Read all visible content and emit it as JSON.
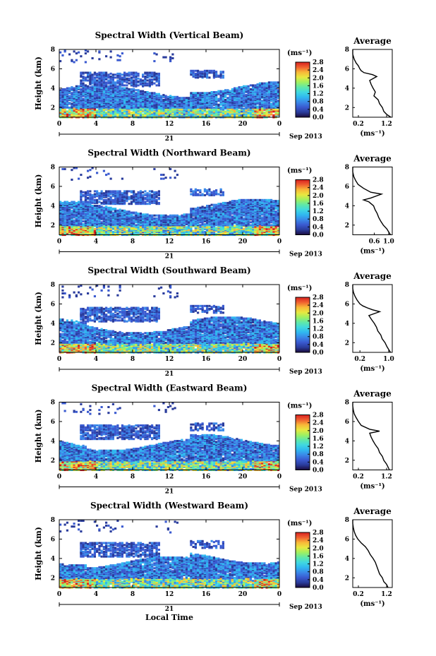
{
  "figure": {
    "xlabel": "Local Time",
    "date_label": "Sep 2013",
    "day_label": "21",
    "units_label": "(ms⁻¹)",
    "avg_title": "Average"
  },
  "colormap": [
    "#1a0a3c",
    "#2a3c9c",
    "#3a5ad0",
    "#3a88e8",
    "#30b8f0",
    "#40d8e0",
    "#60e8a8",
    "#a0f060",
    "#e8e840",
    "#f8b838",
    "#f06030",
    "#d82020"
  ],
  "chart_data": [
    {
      "type": "heatmap",
      "title": "Spectral Width (Vertical Beam)",
      "xlabel": "",
      "ylabel": "Height (km)",
      "x_ticks": [
        "0",
        "4",
        "8",
        "12",
        "16",
        "20",
        "0"
      ],
      "y_ticks": [
        "2",
        "4",
        "6",
        "8"
      ],
      "xlim": [
        0,
        24
      ],
      "ylim": [
        1,
        8
      ],
      "colorbar": {
        "ticks": [
          "0.0",
          "0.4",
          "0.8",
          "1.2",
          "1.6",
          "2.0",
          "2.4",
          "2.8"
        ],
        "range": [
          0.0,
          2.8
        ]
      },
      "top_layer_km": 5.6,
      "average": {
        "title": "Average",
        "xlabel": "(ms⁻¹)",
        "x_ticks": [
          "0.2",
          "1.2"
        ],
        "xlim": [
          0.0,
          1.4
        ],
        "y_ticks": [
          "2",
          "4",
          "6",
          "8"
        ],
        "ylim": [
          1,
          8
        ],
        "height_km": [
          1.0,
          1.3,
          1.6,
          2.0,
          2.4,
          2.8,
          3.2,
          3.6,
          4.0,
          4.4,
          4.8,
          5.2,
          5.4,
          5.6,
          5.8,
          6.0,
          6.3,
          6.6,
          7.0,
          7.5,
          8.0
        ],
        "width": [
          1.35,
          1.2,
          1.1,
          1.05,
          0.95,
          0.9,
          0.75,
          0.8,
          0.72,
          0.65,
          0.6,
          0.85,
          0.7,
          0.4,
          0.3,
          0.25,
          0.2,
          0.12,
          0.05,
          0.0,
          0.0
        ]
      }
    },
    {
      "type": "heatmap",
      "title": "Spectral Width (Northward Beam)",
      "xlabel": "",
      "ylabel": "Height (km)",
      "x_ticks": [
        "0",
        "4",
        "8",
        "12",
        "16",
        "20",
        "0"
      ],
      "y_ticks": [
        "2",
        "4",
        "6",
        "8"
      ],
      "xlim": [
        0,
        24
      ],
      "ylim": [
        1,
        8
      ],
      "colorbar": {
        "ticks": [
          "0.0",
          "0.4",
          "0.8",
          "1.2",
          "1.6",
          "2.0",
          "2.4",
          "2.8"
        ],
        "range": [
          0.0,
          2.8
        ]
      },
      "top_layer_km": 5.5,
      "average": {
        "title": "Average",
        "xlabel": "(ms⁻¹)",
        "x_ticks": [
          "0.6",
          "1.0"
        ],
        "xlim": [
          0.0,
          1.1
        ],
        "y_ticks": [
          "2",
          "4",
          "6",
          "8"
        ],
        "ylim": [
          1,
          8
        ],
        "height_km": [
          1.0,
          1.3,
          1.6,
          2.0,
          2.4,
          2.8,
          3.2,
          3.6,
          4.0,
          4.4,
          4.6,
          4.8,
          5.2,
          5.4,
          5.8,
          6.2,
          6.6,
          7.0,
          7.5,
          8.0
        ],
        "width": [
          1.05,
          1.0,
          0.95,
          0.85,
          0.78,
          0.72,
          0.68,
          0.62,
          0.58,
          0.45,
          0.3,
          0.5,
          0.8,
          0.5,
          0.3,
          0.15,
          0.08,
          0.03,
          0.0,
          0.0
        ]
      }
    },
    {
      "type": "heatmap",
      "title": "Spectral Width (Southward Beam)",
      "xlabel": "",
      "ylabel": "Height (km)",
      "x_ticks": [
        "0",
        "4",
        "8",
        "12",
        "16",
        "20",
        "0"
      ],
      "y_ticks": [
        "2",
        "4",
        "6",
        "8"
      ],
      "xlim": [
        0,
        24
      ],
      "ylim": [
        1,
        8
      ],
      "colorbar": {
        "ticks": [
          "0.0",
          "0.4",
          "0.8",
          "1.2",
          "1.6",
          "2.0",
          "2.4",
          "2.8"
        ],
        "range": [
          0.0,
          2.8
        ]
      },
      "top_layer_km": 5.6,
      "average": {
        "title": "Average",
        "xlabel": "(ms⁻¹)",
        "x_ticks": [
          "0.2",
          "1.0"
        ],
        "xlim": [
          0.0,
          1.1
        ],
        "y_ticks": [
          "2",
          "4",
          "6",
          "8"
        ],
        "ylim": [
          1,
          8
        ],
        "height_km": [
          1.0,
          1.3,
          1.6,
          2.0,
          2.4,
          2.8,
          3.2,
          3.6,
          4.0,
          4.4,
          4.8,
          5.2,
          5.4,
          5.6,
          5.8,
          6.0,
          6.4,
          6.8,
          7.2,
          7.6,
          8.0
        ],
        "width": [
          1.05,
          1.0,
          0.95,
          0.9,
          0.82,
          0.78,
          0.7,
          0.66,
          0.6,
          0.52,
          0.45,
          0.75,
          0.55,
          0.4,
          0.28,
          0.2,
          0.12,
          0.06,
          0.02,
          0.0,
          0.0
        ]
      }
    },
    {
      "type": "heatmap",
      "title": "Spectral Width (Eastward Beam)",
      "xlabel": "",
      "ylabel": "Height (km)",
      "x_ticks": [
        "0",
        "4",
        "8",
        "12",
        "16",
        "20",
        "0"
      ],
      "y_ticks": [
        "2",
        "4",
        "6",
        "8"
      ],
      "xlim": [
        0,
        24
      ],
      "ylim": [
        1,
        8
      ],
      "colorbar": {
        "ticks": [
          "0.0",
          "0.4",
          "0.8",
          "1.2",
          "1.6",
          "2.0",
          "2.4",
          "2.8"
        ],
        "range": [
          0.0,
          2.8
        ]
      },
      "top_layer_km": 5.6,
      "average": {
        "title": "Average",
        "xlabel": "(ms⁻¹)",
        "x_ticks": [
          "0.2",
          "1.2"
        ],
        "xlim": [
          0.0,
          1.4
        ],
        "y_ticks": [
          "2",
          "4",
          "6",
          "8"
        ],
        "ylim": [
          1,
          8
        ],
        "height_km": [
          1.0,
          1.3,
          1.6,
          2.0,
          2.4,
          2.8,
          3.2,
          3.6,
          4.0,
          4.4,
          4.8,
          5.0,
          5.2,
          5.6,
          6.0,
          6.4,
          6.8,
          7.2,
          7.6,
          8.0
        ],
        "width": [
          1.3,
          1.25,
          1.2,
          1.1,
          1.05,
          0.95,
          0.9,
          0.8,
          0.72,
          0.65,
          0.6,
          0.95,
          0.6,
          0.3,
          0.2,
          0.12,
          0.05,
          0.02,
          0.0,
          0.0
        ]
      }
    },
    {
      "type": "heatmap",
      "title": "Spectral Width (Westward Beam)",
      "xlabel": "Local Time",
      "ylabel": "Height (km)",
      "x_ticks": [
        "0",
        "4",
        "8",
        "12",
        "16",
        "20",
        "0"
      ],
      "y_ticks": [
        "2",
        "4",
        "6",
        "8"
      ],
      "xlim": [
        0,
        24
      ],
      "ylim": [
        1,
        8
      ],
      "colorbar": {
        "ticks": [
          "0.0",
          "0.4",
          "0.8",
          "1.2",
          "1.6",
          "2.0",
          "2.4",
          "2.8"
        ],
        "range": [
          0.0,
          2.8
        ]
      },
      "top_layer_km": 5.6,
      "average": {
        "title": "Average",
        "xlabel": "(ms⁻¹)",
        "x_ticks": [
          "0.2",
          "1.2"
        ],
        "xlim": [
          0.0,
          1.4
        ],
        "y_ticks": [
          "2",
          "4",
          "6",
          "8"
        ],
        "ylim": [
          1,
          8
        ],
        "height_km": [
          1.0,
          1.3,
          1.6,
          2.0,
          2.4,
          2.8,
          3.2,
          3.6,
          4.0,
          4.4,
          4.8,
          5.2,
          5.6,
          6.0,
          6.4,
          6.8,
          7.2,
          7.6,
          8.0
        ],
        "width": [
          1.25,
          1.2,
          1.1,
          1.05,
          0.95,
          0.9,
          0.85,
          0.8,
          0.72,
          0.62,
          0.55,
          0.45,
          0.3,
          0.18,
          0.1,
          0.05,
          0.02,
          0.0,
          0.0
        ]
      }
    }
  ]
}
